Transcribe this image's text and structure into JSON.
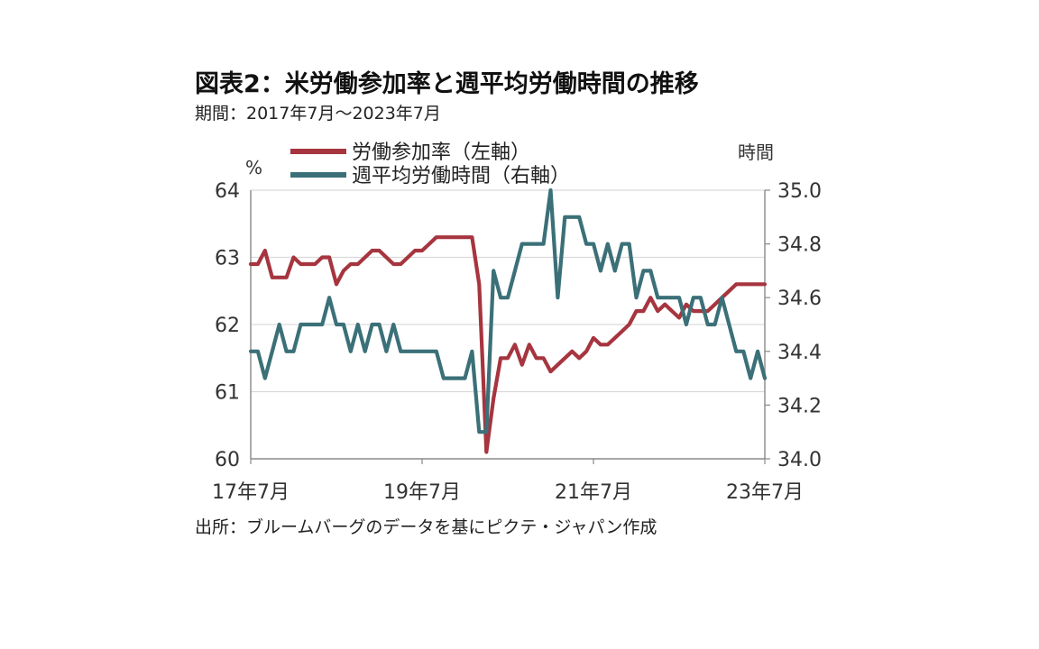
{
  "title": "図表2：米労働参加率と週平均労働時間の推移",
  "subtitle": "期間：2017年7月～2023年7月",
  "source": "出所：ブルームバーグのデータを基にピクテ・ジャパン作成",
  "colors": {
    "participation": "#a6353f",
    "hours": "#3b7078",
    "grid": "#d9d9d9",
    "axis": "#888888"
  },
  "chart_data": {
    "type": "line",
    "x": [
      "2017-07",
      "2017-08",
      "2017-09",
      "2017-10",
      "2017-11",
      "2017-12",
      "2018-01",
      "2018-02",
      "2018-03",
      "2018-04",
      "2018-05",
      "2018-06",
      "2018-07",
      "2018-08",
      "2018-09",
      "2018-10",
      "2018-11",
      "2018-12",
      "2019-01",
      "2019-02",
      "2019-03",
      "2019-04",
      "2019-05",
      "2019-06",
      "2019-07",
      "2019-08",
      "2019-09",
      "2019-10",
      "2019-11",
      "2019-12",
      "2020-01",
      "2020-02",
      "2020-03",
      "2020-04",
      "2020-05",
      "2020-06",
      "2020-07",
      "2020-08",
      "2020-09",
      "2020-10",
      "2020-11",
      "2020-12",
      "2021-01",
      "2021-02",
      "2021-03",
      "2021-04",
      "2021-05",
      "2021-06",
      "2021-07",
      "2021-08",
      "2021-09",
      "2021-10",
      "2021-11",
      "2021-12",
      "2022-01",
      "2022-02",
      "2022-03",
      "2022-04",
      "2022-05",
      "2022-06",
      "2022-07",
      "2022-08",
      "2022-09",
      "2022-10",
      "2022-11",
      "2022-12",
      "2023-01",
      "2023-02",
      "2023-03",
      "2023-04",
      "2023-05",
      "2023-06",
      "2023-07"
    ],
    "x_tick_labels": [
      {
        "date": "2017-07",
        "label": "17年7月"
      },
      {
        "date": "2019-07",
        "label": "19年7月"
      },
      {
        "date": "2021-07",
        "label": "21年7月"
      },
      {
        "date": "2023-07",
        "label": "23年7月"
      }
    ],
    "series": [
      {
        "name": "労働参加率（左軸）",
        "axis": "left",
        "values": [
          62.9,
          62.9,
          63.1,
          62.7,
          62.7,
          62.7,
          63.0,
          62.9,
          62.9,
          62.9,
          63.0,
          63.0,
          62.6,
          62.8,
          62.9,
          62.9,
          63.0,
          63.1,
          63.1,
          63.0,
          62.9,
          62.9,
          63.0,
          63.1,
          63.1,
          63.2,
          63.3,
          63.3,
          63.3,
          63.3,
          63.3,
          63.3,
          62.6,
          60.1,
          60.9,
          61.5,
          61.5,
          61.7,
          61.4,
          61.7,
          61.5,
          61.5,
          61.3,
          61.4,
          61.5,
          61.6,
          61.5,
          61.6,
          61.8,
          61.7,
          61.7,
          61.8,
          61.9,
          62.0,
          62.2,
          62.2,
          62.4,
          62.2,
          62.3,
          62.2,
          62.1,
          62.3,
          62.2,
          62.2,
          62.2,
          62.3,
          62.4,
          62.5,
          62.6,
          62.6,
          62.6,
          62.6,
          62.6
        ]
      },
      {
        "name": "週平均労働時間（右軸）",
        "axis": "right",
        "values": [
          34.4,
          34.4,
          34.3,
          34.4,
          34.5,
          34.4,
          34.4,
          34.5,
          34.5,
          34.5,
          34.5,
          34.6,
          34.5,
          34.5,
          34.4,
          34.5,
          34.4,
          34.5,
          34.5,
          34.4,
          34.5,
          34.4,
          34.4,
          34.4,
          34.4,
          34.4,
          34.4,
          34.3,
          34.3,
          34.3,
          34.3,
          34.4,
          34.1,
          34.1,
          34.7,
          34.6,
          34.6,
          34.7,
          34.8,
          34.8,
          34.8,
          34.8,
          35.0,
          34.6,
          34.9,
          34.9,
          34.9,
          34.8,
          34.8,
          34.7,
          34.8,
          34.7,
          34.8,
          34.8,
          34.6,
          34.7,
          34.7,
          34.6,
          34.6,
          34.6,
          34.6,
          34.5,
          34.6,
          34.6,
          34.5,
          34.5,
          34.6,
          34.5,
          34.4,
          34.4,
          34.3,
          34.4,
          34.3
        ]
      }
    ],
    "y_left": {
      "unit": "%",
      "min": 60,
      "max": 64,
      "ticks": [
        60,
        61,
        62,
        63,
        64
      ]
    },
    "y_right": {
      "unit": "時間",
      "min": 34.0,
      "max": 35.0,
      "ticks": [
        "34.0",
        "34.2",
        "34.4",
        "34.6",
        "34.8",
        "35.0"
      ]
    },
    "grid": true,
    "legend_position": "top"
  }
}
